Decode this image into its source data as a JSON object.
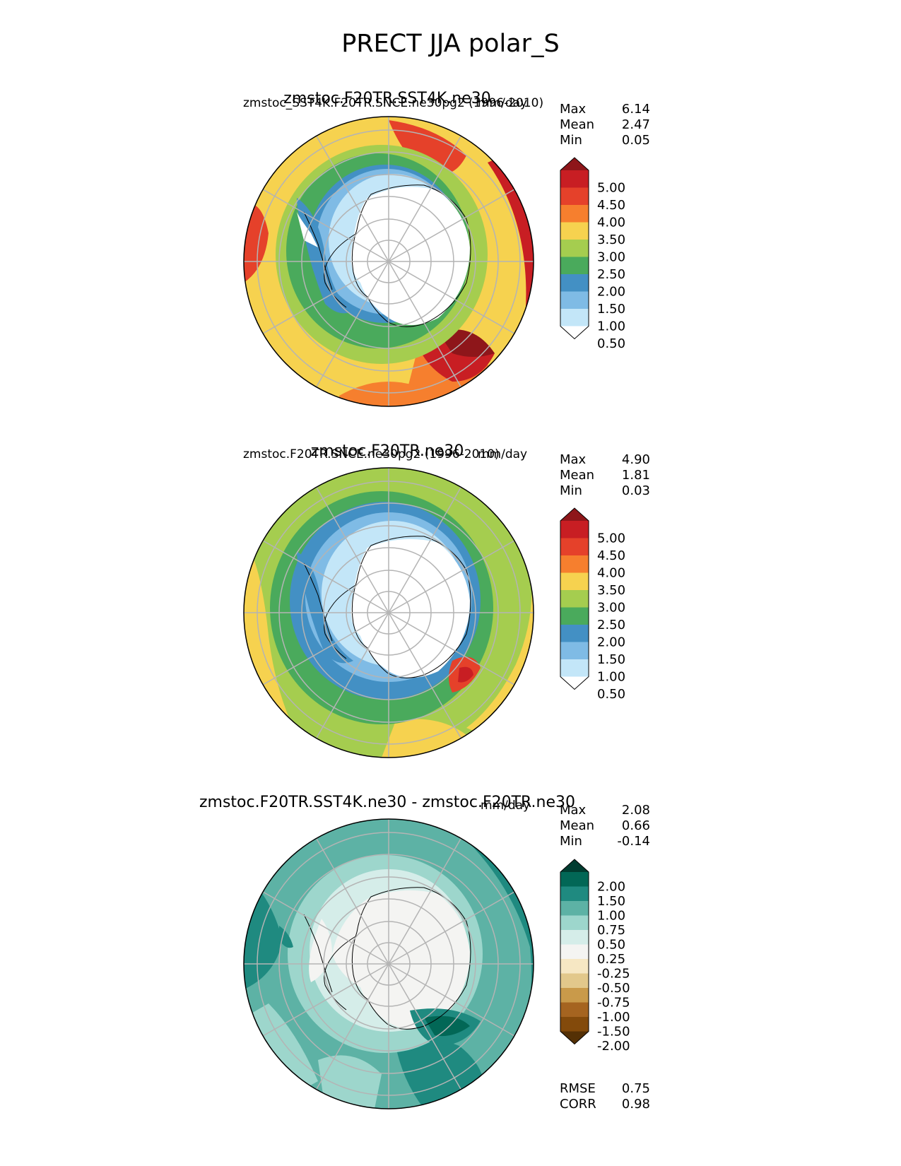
{
  "figure": {
    "title": "PRECT JJA polar_S"
  },
  "panels": [
    {
      "title_center": "zmstoc.F20TR.SST4K.ne30",
      "title_left": "zmstoc_SST4K.F20TR.SNCE.ne30pg2 (1996-2010)",
      "title_right": "mm/day",
      "stats": [
        {
          "k": "Max",
          "v": "6.14"
        },
        {
          "k": "Mean",
          "v": "2.47"
        },
        {
          "k": "Min",
          "v": "0.05"
        }
      ],
      "colorbar": {
        "labels": [
          "5.00",
          "4.50",
          "4.00",
          "3.50",
          "3.00",
          "2.50",
          "2.00",
          "1.50",
          "1.00",
          "0.50"
        ],
        "colors": [
          "#8e161a",
          "#c81e23",
          "#e5412a",
          "#f67f2e",
          "#f6d24f",
          "#a5cd4f",
          "#4aaa5c",
          "#4390c4",
          "#7fbbe5",
          "#c3e6f8",
          "#ffffff"
        ]
      }
    },
    {
      "title_center": "zmstoc.F20TR.ne30",
      "title_left": "zmstoc.F20TR.SNCE.ne30pg2 (1996-2010)",
      "title_right": "mm/day",
      "stats": [
        {
          "k": "Max",
          "v": "4.90"
        },
        {
          "k": "Mean",
          "v": "1.81"
        },
        {
          "k": "Min",
          "v": "0.03"
        }
      ],
      "colorbar": {
        "labels": [
          "5.00",
          "4.50",
          "4.00",
          "3.50",
          "3.00",
          "2.50",
          "2.00",
          "1.50",
          "1.00",
          "0.50"
        ],
        "colors": [
          "#8e161a",
          "#c81e23",
          "#e5412a",
          "#f67f2e",
          "#f6d24f",
          "#a5cd4f",
          "#4aaa5c",
          "#4390c4",
          "#7fbbe5",
          "#c3e6f8",
          "#ffffff"
        ]
      }
    },
    {
      "title_center": "zmstoc.F20TR.SST4K.ne30 - zmstoc.F20TR.ne30",
      "title_left": "",
      "title_right": "mm/day",
      "stats": [
        {
          "k": "Max",
          "v": "2.08"
        },
        {
          "k": "Mean",
          "v": "0.66"
        },
        {
          "k": "Min",
          "v": "-0.14"
        }
      ],
      "colorbar": {
        "labels": [
          "2.00",
          "1.50",
          "1.00",
          "0.75",
          "0.50",
          "0.25",
          "-0.25",
          "-0.50",
          "-0.75",
          "-1.00",
          "-1.50",
          "-2.00"
        ],
        "colors": [
          "#013c30",
          "#026756",
          "#1f8a80",
          "#5db2a5",
          "#9dd6cc",
          "#d5ede9",
          "#f4f4f2",
          "#f6e7c3",
          "#e2c88b",
          "#c99a4a",
          "#a56420",
          "#834a0b",
          "#543005"
        ]
      },
      "metrics": [
        {
          "k": "RMSE",
          "v": "0.75"
        },
        {
          "k": "CORR",
          "v": "0.98"
        }
      ]
    }
  ],
  "colors": {
    "land_ice": "#ffffff",
    "grid": "#b4b4b4",
    "coast": "#000000"
  }
}
